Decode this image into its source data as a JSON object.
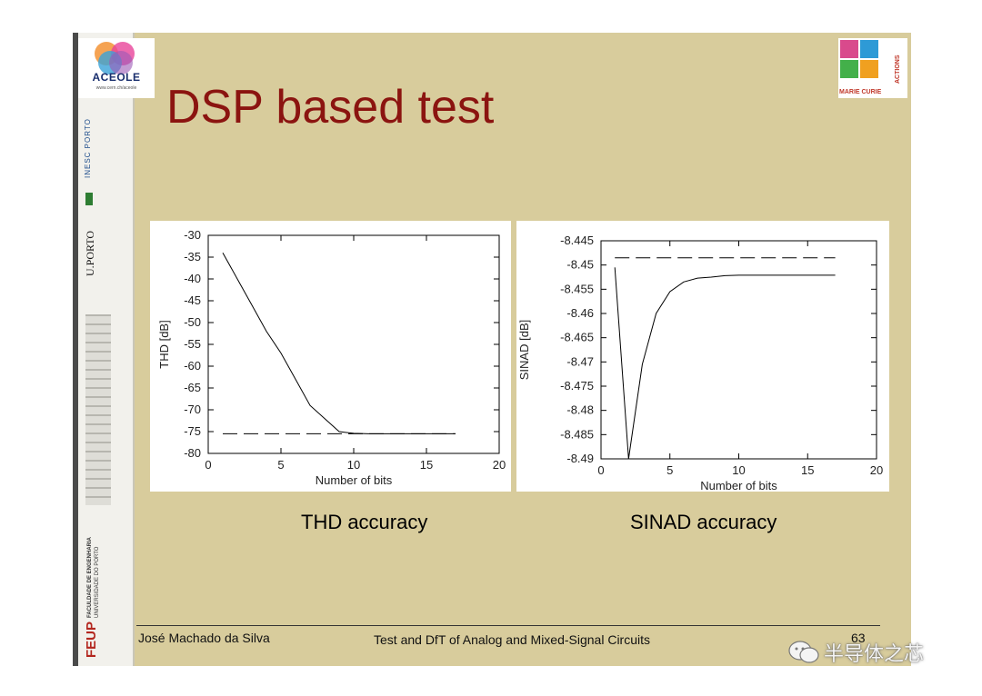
{
  "slide": {
    "title": "DSP based test",
    "footer_author": "José Machado da Silva",
    "footer_course": "Test and DfT of Analog and Mixed-Signal Circuits",
    "footer_page": "63"
  },
  "logos": {
    "aceole_name": "ACEOLE",
    "aceole_url": "www.cern.ch/aceole",
    "inesc": "INESC PORTO",
    "uporto": "U.PORTO",
    "feup_main": "FEUP",
    "feup_sub1": "FACULDADE DE ENGENHARIA",
    "feup_sub2": "UNIVERSIDADE DO PORTO",
    "marie_curie": "MARIE CURIE",
    "actions": "ACTIONS"
  },
  "captions": {
    "left": "THD accuracy",
    "right": "SINAD accuracy"
  },
  "watermark": "半导体之芯",
  "chart_data": [
    {
      "type": "line",
      "xlabel": "Number of bits",
      "ylabel": "THD [dB]",
      "xlim": [
        0,
        20
      ],
      "ylim": [
        -80,
        -30
      ],
      "xticks": [
        0,
        5,
        10,
        15,
        20
      ],
      "yticks": [
        -30,
        -35,
        -40,
        -45,
        -50,
        -55,
        -60,
        -65,
        -70,
        -75,
        -80
      ],
      "series": [
        {
          "style": "solid",
          "x": [
            1,
            2,
            3,
            4,
            5,
            6,
            7,
            8,
            9,
            10,
            11,
            12,
            13,
            14,
            15,
            16,
            17
          ],
          "y": [
            -34,
            -40,
            -46,
            -52,
            -57,
            -63,
            -69,
            -72,
            -75,
            -75.4,
            -75.5,
            -75.5,
            -75.5,
            -75.5,
            -75.5,
            -75.5,
            -75.5
          ]
        },
        {
          "style": "dashed",
          "x": [
            1,
            17
          ],
          "y": [
            -75.5,
            -75.5
          ]
        }
      ]
    },
    {
      "type": "line",
      "xlabel": "Number of bits",
      "ylabel": "SINAD [dB]",
      "xlim": [
        0,
        20
      ],
      "ylim": [
        -8.49,
        -8.445
      ],
      "xticks": [
        0,
        5,
        10,
        15,
        20
      ],
      "yticks": [
        -8.445,
        -8.45,
        -8.455,
        -8.46,
        -8.465,
        -8.47,
        -8.475,
        -8.48,
        -8.485,
        -8.49
      ],
      "ytick_labels": [
        "-8.445",
        "-8.45",
        "-8.455",
        "-8.46",
        "-8.465",
        "-8.47",
        "-8.475",
        "-8.48",
        "-8.485",
        "-8.49"
      ],
      "series": [
        {
          "style": "solid",
          "x": [
            1,
            2,
            3,
            4,
            5,
            6,
            7,
            8,
            9,
            10,
            11,
            12,
            13,
            14,
            15,
            16,
            17
          ],
          "y": [
            -8.4505,
            -8.49,
            -8.4705,
            -8.46,
            -8.4555,
            -8.4535,
            -8.4527,
            -8.4525,
            -8.4522,
            -8.4521,
            -8.4521,
            -8.4521,
            -8.4521,
            -8.4521,
            -8.4521,
            -8.4521,
            -8.4521
          ]
        },
        {
          "style": "dashed",
          "x": [
            1,
            17
          ],
          "y": [
            -8.4485,
            -8.4485
          ]
        }
      ]
    }
  ]
}
